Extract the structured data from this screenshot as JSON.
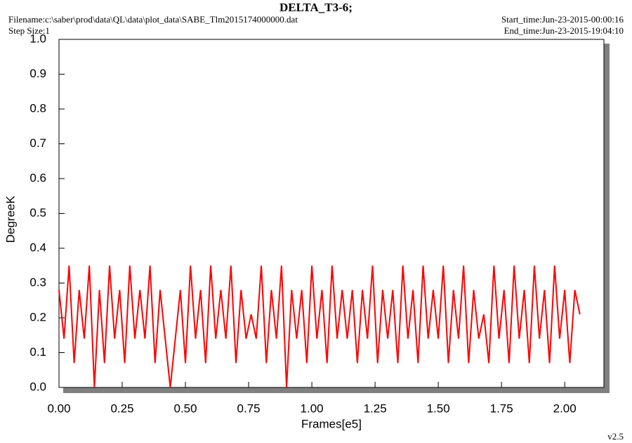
{
  "chart_data": {
    "type": "line",
    "title": "DELTA_T3-6;",
    "filename": "Filename:c:\\saber\\prod\\data\\QL\\data\\plot_data\\SABE_Tlm2015174000000.dat",
    "step_size": "Step Size:1",
    "start_time": "Start_time:Jun-23-2015-00:00:16",
    "end_time": "End_time:Jun-23-2015-19:04:10",
    "version": "v2.5",
    "x_label": "Frames[e5]",
    "y_label": "DegreeK",
    "xlim": [
      0,
      2.155
    ],
    "ylim": [
      0,
      1.0
    ],
    "xticks": [
      {
        "value": 0,
        "label": "0.00"
      },
      {
        "value": 0.25,
        "label": "0.25"
      },
      {
        "value": 0.5,
        "label": "0.50"
      },
      {
        "value": 0.75,
        "label": "0.75"
      },
      {
        "value": 1.0,
        "label": "1.00"
      },
      {
        "value": 1.25,
        "label": "1.25"
      },
      {
        "value": 1.5,
        "label": "1.50"
      },
      {
        "value": 1.75,
        "label": "1.75"
      },
      {
        "value": 2.0,
        "label": "2.00"
      }
    ],
    "yticks": [
      {
        "value": 0,
        "label": "0.0"
      },
      0.1,
      0.2,
      0.3,
      0.4,
      0.5,
      0.6,
      0.7,
      0.8,
      0.9,
      {
        "value": 1.0,
        "label": "1.0"
      }
    ],
    "x": [
      0,
      0.02,
      0.04,
      0.06,
      0.08,
      0.1,
      0.12,
      0.14,
      0.16,
      0.18,
      0.2,
      0.22,
      0.24,
      0.26,
      0.28,
      0.3,
      0.32,
      0.34,
      0.36,
      0.38,
      0.4,
      0.42,
      0.44,
      0.46,
      0.48,
      0.5,
      0.52,
      0.54,
      0.56,
      0.58,
      0.6,
      0.62,
      0.64,
      0.66,
      0.68,
      0.7,
      0.72,
      0.74,
      0.76,
      0.78,
      0.8,
      0.82,
      0.84,
      0.86,
      0.88,
      0.9,
      0.92,
      0.94,
      0.96,
      0.98,
      1.0,
      1.02,
      1.04,
      1.06,
      1.08,
      1.1,
      1.12,
      1.14,
      1.16,
      1.18,
      1.2,
      1.22,
      1.24,
      1.26,
      1.28,
      1.3,
      1.32,
      1.34,
      1.36,
      1.38,
      1.4,
      1.42,
      1.44,
      1.46,
      1.48,
      1.5,
      1.52,
      1.54,
      1.56,
      1.58,
      1.6,
      1.62,
      1.64,
      1.66,
      1.68,
      1.7,
      1.72,
      1.74,
      1.76,
      1.78,
      1.8,
      1.82,
      1.84,
      1.86,
      1.88,
      1.9,
      1.92,
      1.94,
      1.96,
      1.98,
      2.0,
      2.02,
      2.04,
      2.06
    ],
    "series": [
      {
        "color": "#ff0000",
        "values": [
          0.28,
          0.14,
          0.35,
          0.07,
          0.28,
          0.14,
          0.35,
          0.0,
          0.28,
          0.07,
          0.35,
          0.14,
          0.28,
          0.07,
          0.35,
          0.14,
          0.28,
          0.14,
          0.35,
          0.07,
          0.28,
          0.14,
          0.0,
          0.14,
          0.28,
          0.07,
          0.35,
          0.14,
          0.28,
          0.07,
          0.35,
          0.14,
          0.28,
          0.14,
          0.35,
          0.07,
          0.28,
          0.14,
          0.21,
          0.14,
          0.35,
          0.07,
          0.28,
          0.14,
          0.35,
          0.0,
          0.28,
          0.14,
          0.28,
          0.07,
          0.35,
          0.14,
          0.28,
          0.07,
          0.35,
          0.14,
          0.28,
          0.14,
          0.28,
          0.07,
          0.28,
          0.14,
          0.35,
          0.07,
          0.28,
          0.14,
          0.28,
          0.07,
          0.35,
          0.14,
          0.28,
          0.07,
          0.35,
          0.14,
          0.28,
          0.14,
          0.35,
          0.07,
          0.28,
          0.14,
          0.35,
          0.07,
          0.28,
          0.14,
          0.21,
          0.07,
          0.35,
          0.14,
          0.28,
          0.07,
          0.35,
          0.14,
          0.28,
          0.07,
          0.35,
          0.14,
          0.28,
          0.07,
          0.35,
          0.14,
          0.28,
          0.07,
          0.28,
          0.21
        ]
      }
    ]
  }
}
